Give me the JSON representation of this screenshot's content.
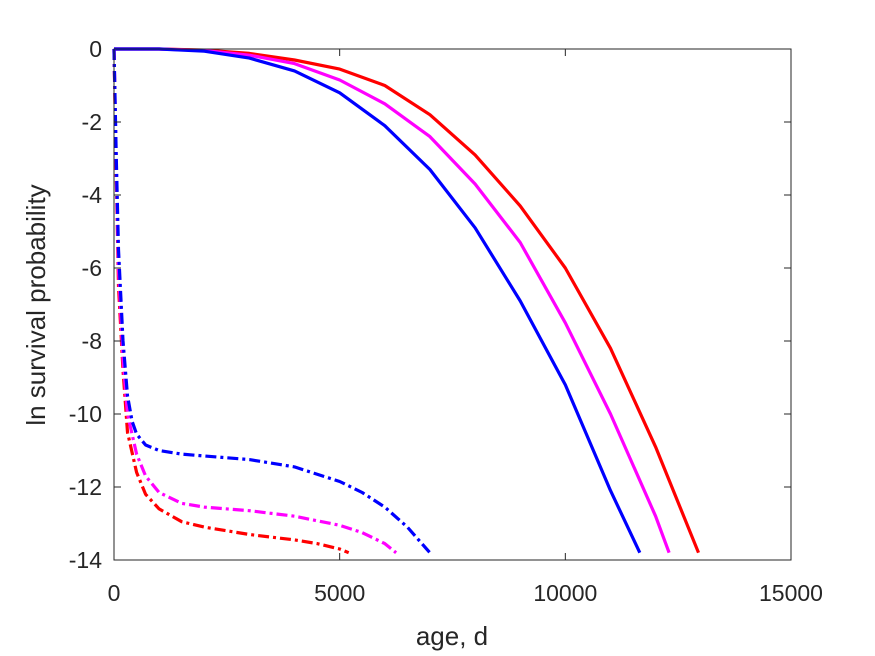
{
  "chart_data": {
    "type": "line",
    "title": "",
    "xlabel": "age, d",
    "ylabel": "ln survival probability",
    "xlim": [
      0,
      15000
    ],
    "ylim": [
      -14,
      0
    ],
    "xticks": [
      0,
      5000,
      10000,
      15000
    ],
    "yticks": [
      -14,
      -12,
      -10,
      -8,
      -6,
      -4,
      -2,
      0
    ],
    "xtick_labels": [
      "0",
      "5000",
      "10000",
      "15000"
    ],
    "ytick_labels": [
      "-14",
      "-12",
      "-10",
      "-8",
      "-6",
      "-4",
      "-2",
      "0"
    ],
    "grid": false,
    "legend": "none",
    "series": [
      {
        "color": "#ff0000",
        "style": "solid",
        "x": [
          0,
          1000,
          2000,
          3000,
          4000,
          5000,
          6000,
          7000,
          8000,
          9000,
          10000,
          11000,
          12000,
          12950
        ],
        "y": [
          0,
          0,
          -0.03,
          -0.12,
          -0.3,
          -0.55,
          -1.0,
          -1.8,
          -2.9,
          -4.3,
          -6.0,
          -8.2,
          -10.9,
          -13.8
        ]
      },
      {
        "color": "#ff00ff",
        "style": "solid",
        "x": [
          0,
          1000,
          2000,
          3000,
          4000,
          5000,
          6000,
          7000,
          8000,
          9000,
          10000,
          11000,
          12000,
          12300
        ],
        "y": [
          0,
          0,
          -0.04,
          -0.17,
          -0.4,
          -0.85,
          -1.5,
          -2.4,
          -3.7,
          -5.3,
          -7.5,
          -10.0,
          -12.8,
          -13.8
        ]
      },
      {
        "color": "#0000ff",
        "style": "solid",
        "x": [
          0,
          1000,
          2000,
          3000,
          4000,
          5000,
          6000,
          7000,
          8000,
          9000,
          10000,
          11000,
          11650
        ],
        "y": [
          0,
          0,
          -0.06,
          -0.25,
          -0.6,
          -1.2,
          -2.1,
          -3.3,
          -4.9,
          -6.9,
          -9.2,
          -12.1,
          -13.8
        ]
      },
      {
        "color": "#ff0000",
        "style": "dashdot",
        "x": [
          0,
          50,
          100,
          200,
          300,
          500,
          700,
          1000,
          1500,
          2000,
          3000,
          4000,
          4500,
          5000,
          5200
        ],
        "y": [
          0,
          -3.5,
          -6.5,
          -8.8,
          -10.5,
          -11.6,
          -12.2,
          -12.6,
          -12.95,
          -13.1,
          -13.3,
          -13.45,
          -13.55,
          -13.7,
          -13.8
        ]
      },
      {
        "color": "#ff00ff",
        "style": "dashdot",
        "x": [
          0,
          50,
          100,
          200,
          300,
          500,
          700,
          1000,
          1500,
          2000,
          3000,
          4000,
          5000,
          5500,
          6000,
          6250
        ],
        "y": [
          0,
          -3.2,
          -6.0,
          -8.5,
          -10.0,
          -11.1,
          -11.7,
          -12.15,
          -12.45,
          -12.55,
          -12.65,
          -12.8,
          -13.05,
          -13.25,
          -13.55,
          -13.8
        ]
      },
      {
        "color": "#0000ff",
        "style": "dashdot",
        "x": [
          0,
          50,
          100,
          200,
          300,
          400,
          500,
          700,
          1000,
          1500,
          2000,
          3000,
          4000,
          5000,
          5500,
          6000,
          6500,
          7000
        ],
        "y": [
          0,
          -3.0,
          -5.5,
          -8.0,
          -9.5,
          -10.2,
          -10.55,
          -10.85,
          -11.0,
          -11.1,
          -11.15,
          -11.25,
          -11.45,
          -11.85,
          -12.15,
          -12.55,
          -13.1,
          -13.8
        ]
      }
    ]
  }
}
